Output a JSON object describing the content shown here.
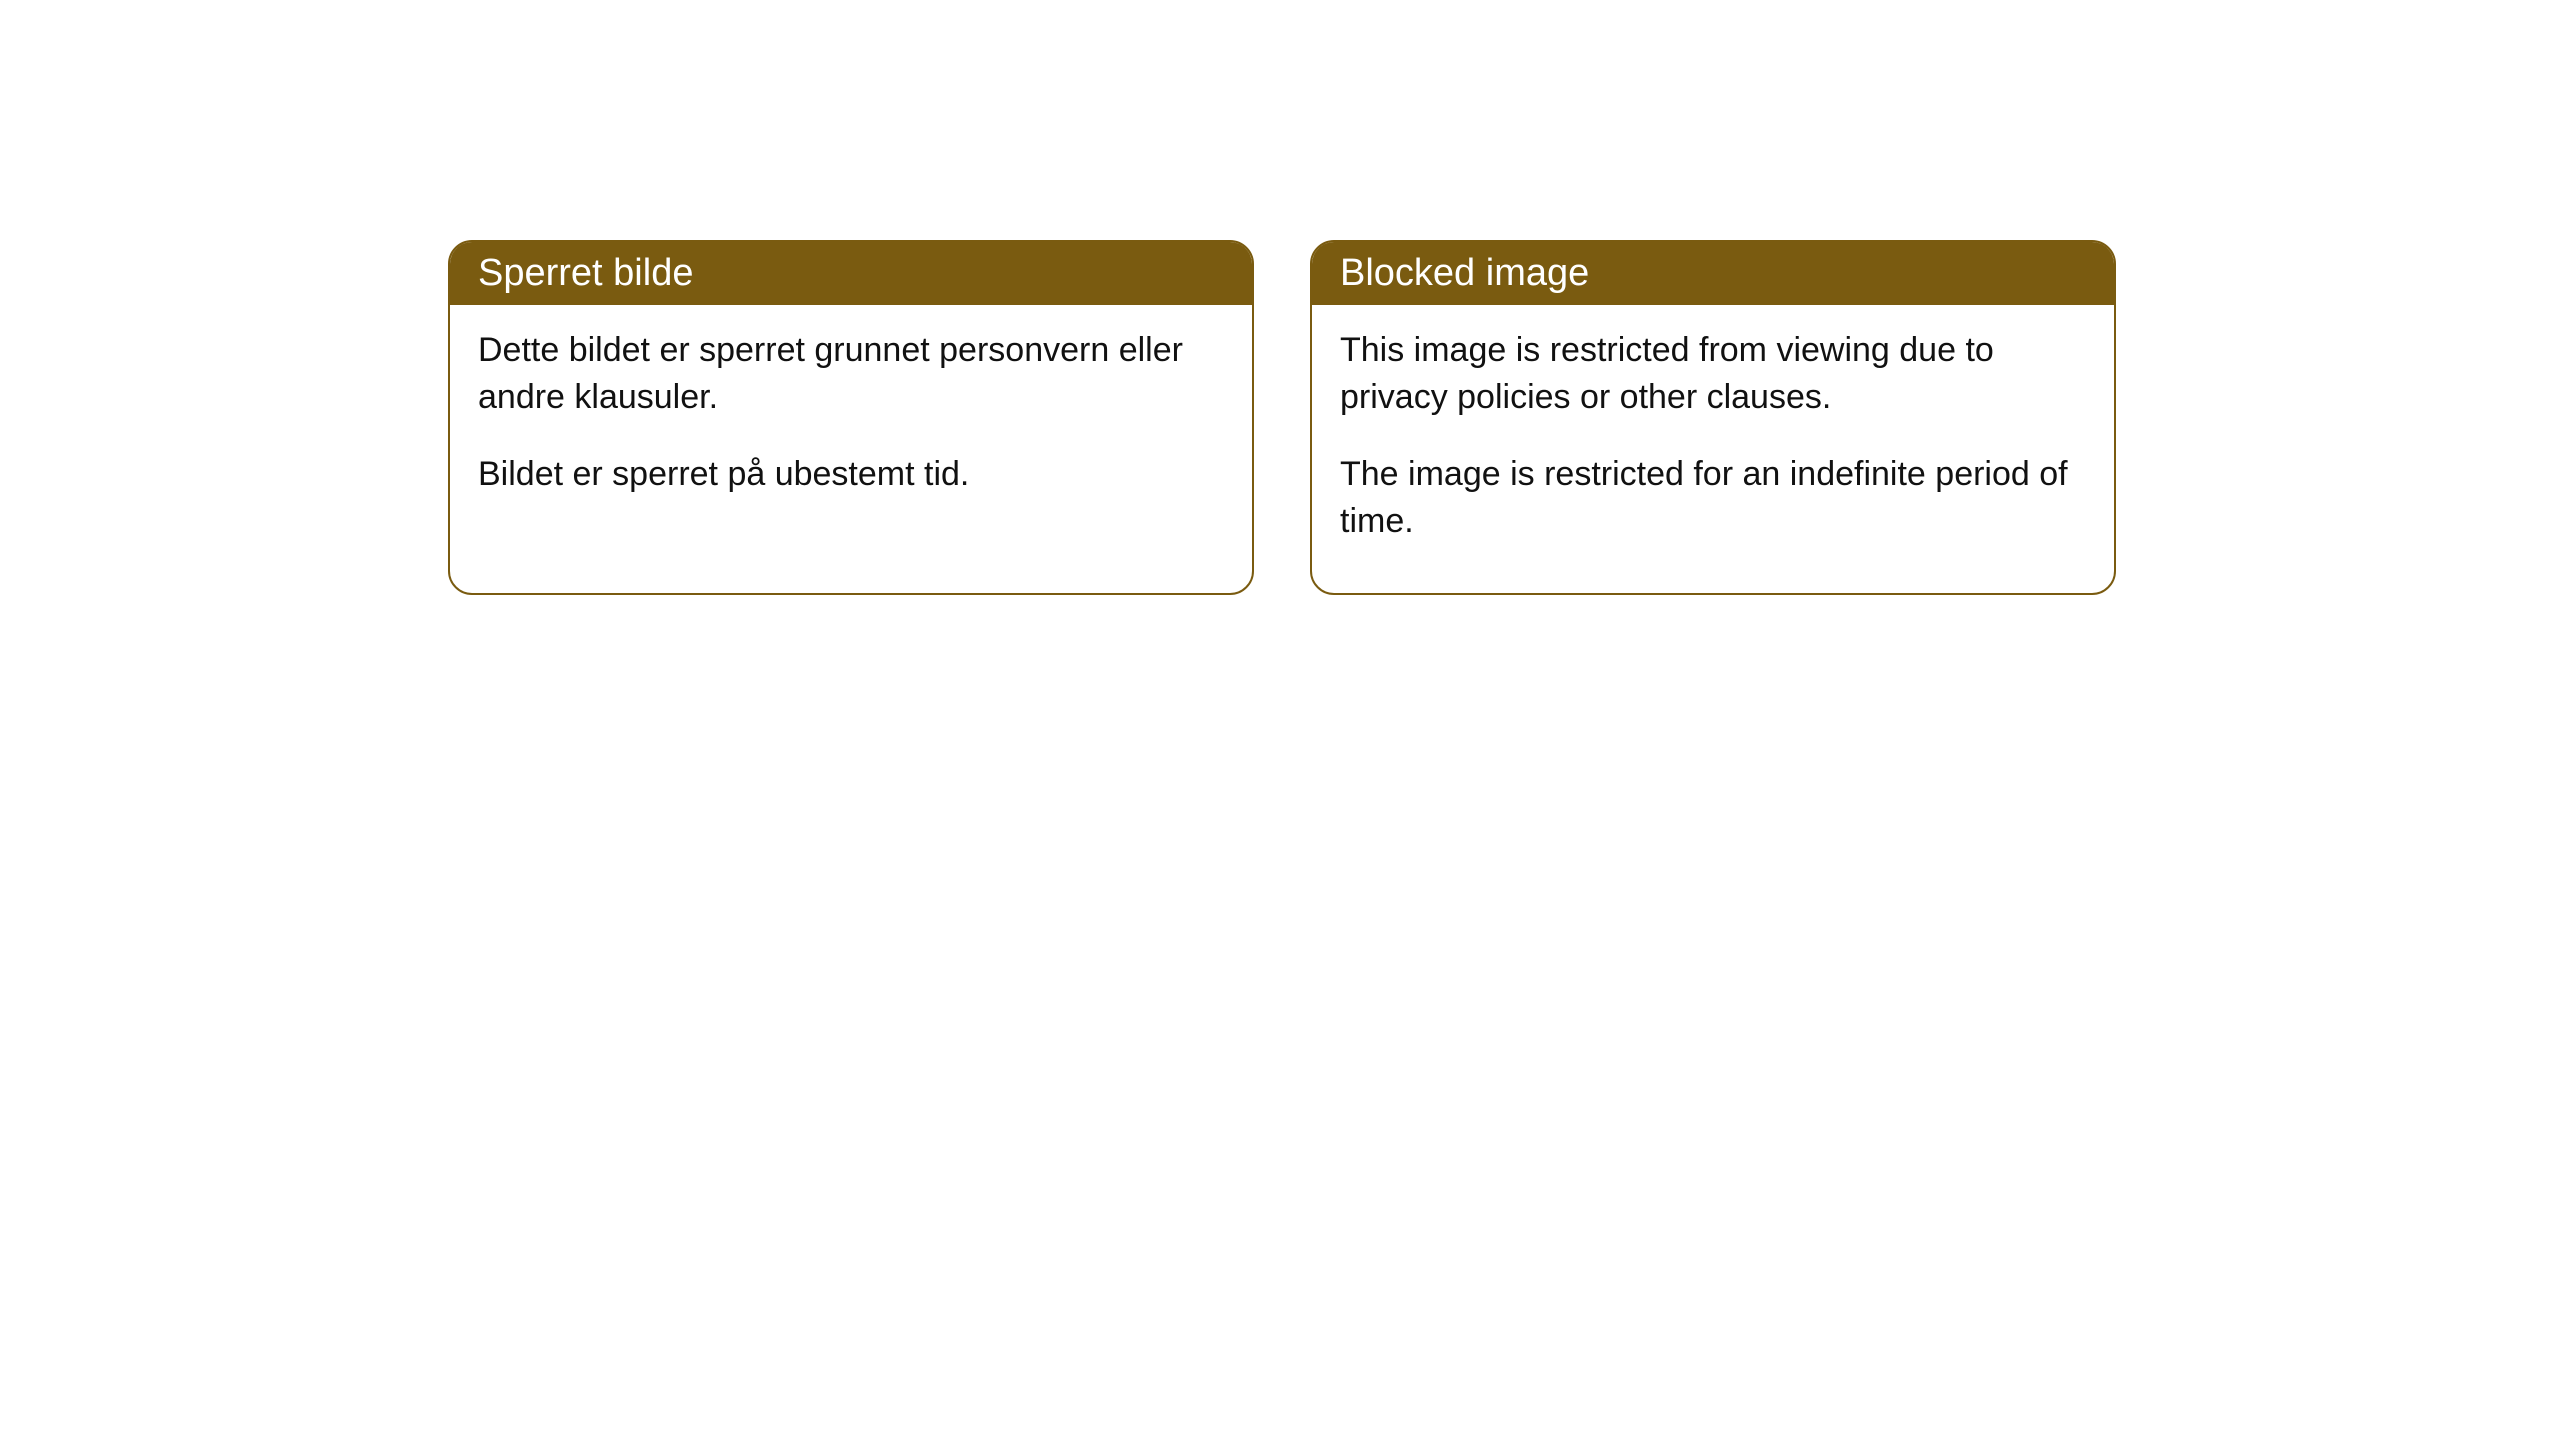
{
  "cards": [
    {
      "title": "Sperret bilde",
      "paragraph1": "Dette bildet er sperret grunnet personvern eller andre klausuler.",
      "paragraph2": "Bildet er sperret på ubestemt tid."
    },
    {
      "title": "Blocked image",
      "paragraph1": "This image is restricted from viewing due to privacy policies or other clauses.",
      "paragraph2": "The image is restricted for an indefinite period of time."
    }
  ],
  "styling": {
    "header_bg_color": "#7a5b10",
    "header_text_color": "#ffffff",
    "border_color": "#7a5b10",
    "body_text_color": "#111111",
    "page_bg_color": "#ffffff",
    "border_radius": 24,
    "title_fontsize": 38,
    "body_fontsize": 34
  }
}
